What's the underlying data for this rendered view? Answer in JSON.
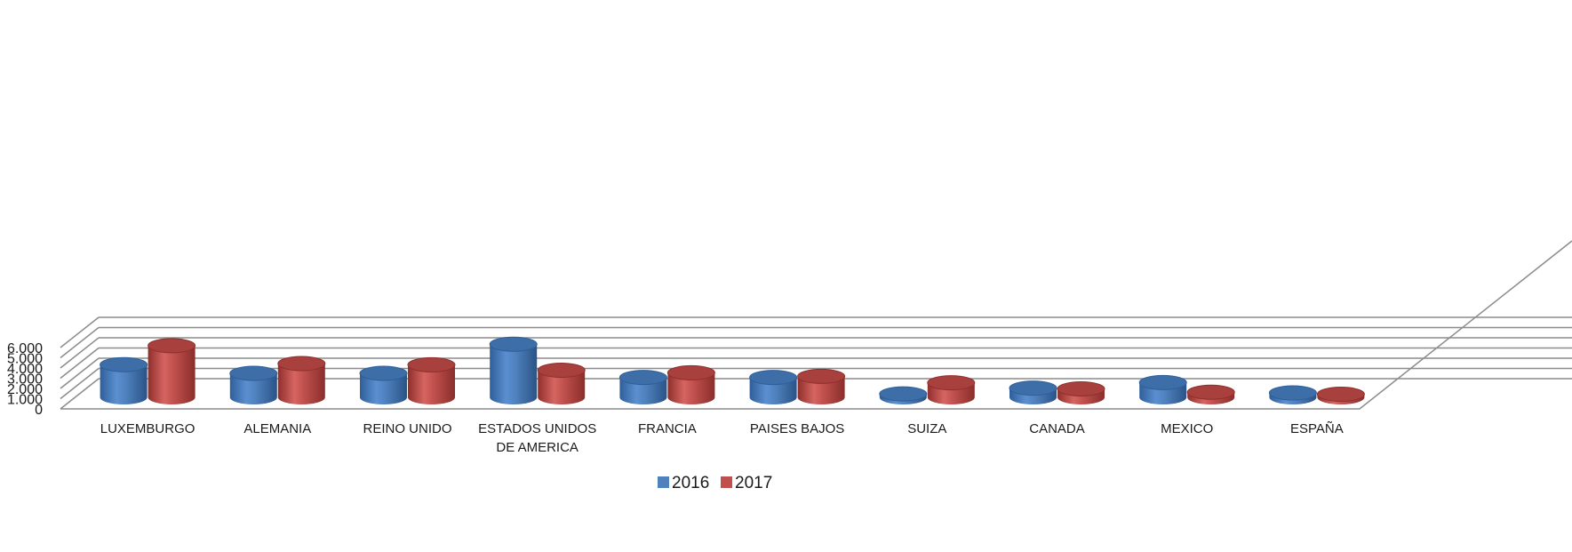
{
  "chart_data": {
    "type": "bar",
    "style": "3d-cylinder",
    "categories": [
      [
        "LUXEMBURGO"
      ],
      [
        "ALEMANIA"
      ],
      [
        "REINO UNIDO"
      ],
      [
        "ESTADOS UNIDOS",
        "DE AMERICA"
      ],
      [
        "FRANCIA"
      ],
      [
        "PAISES BAJOS"
      ],
      [
        "SUIZA"
      ],
      [
        "CANADA"
      ],
      [
        "MEXICO"
      ],
      [
        "ESPAÑA"
      ]
    ],
    "series": [
      {
        "name": "2016",
        "color": "#4f81bd",
        "values": [
          3200,
          2350,
          2350,
          5200,
          1950,
          1950,
          340,
          900,
          1450,
          430
        ]
      },
      {
        "name": "2017",
        "color": "#c0504d",
        "values": [
          5050,
          3300,
          3180,
          2650,
          2400,
          2050,
          1420,
          830,
          500,
          300
        ]
      }
    ],
    "y_ticks": [
      "0",
      "1.000",
      "2.000",
      "3.000",
      "4.000",
      "5.000",
      "6.000"
    ],
    "ylim": [
      0,
      6000
    ],
    "grid": true,
    "legend": {
      "position": "bottom-center",
      "entries": [
        "2016",
        "2017"
      ]
    },
    "title": "",
    "xlabel": "",
    "ylabel": ""
  }
}
